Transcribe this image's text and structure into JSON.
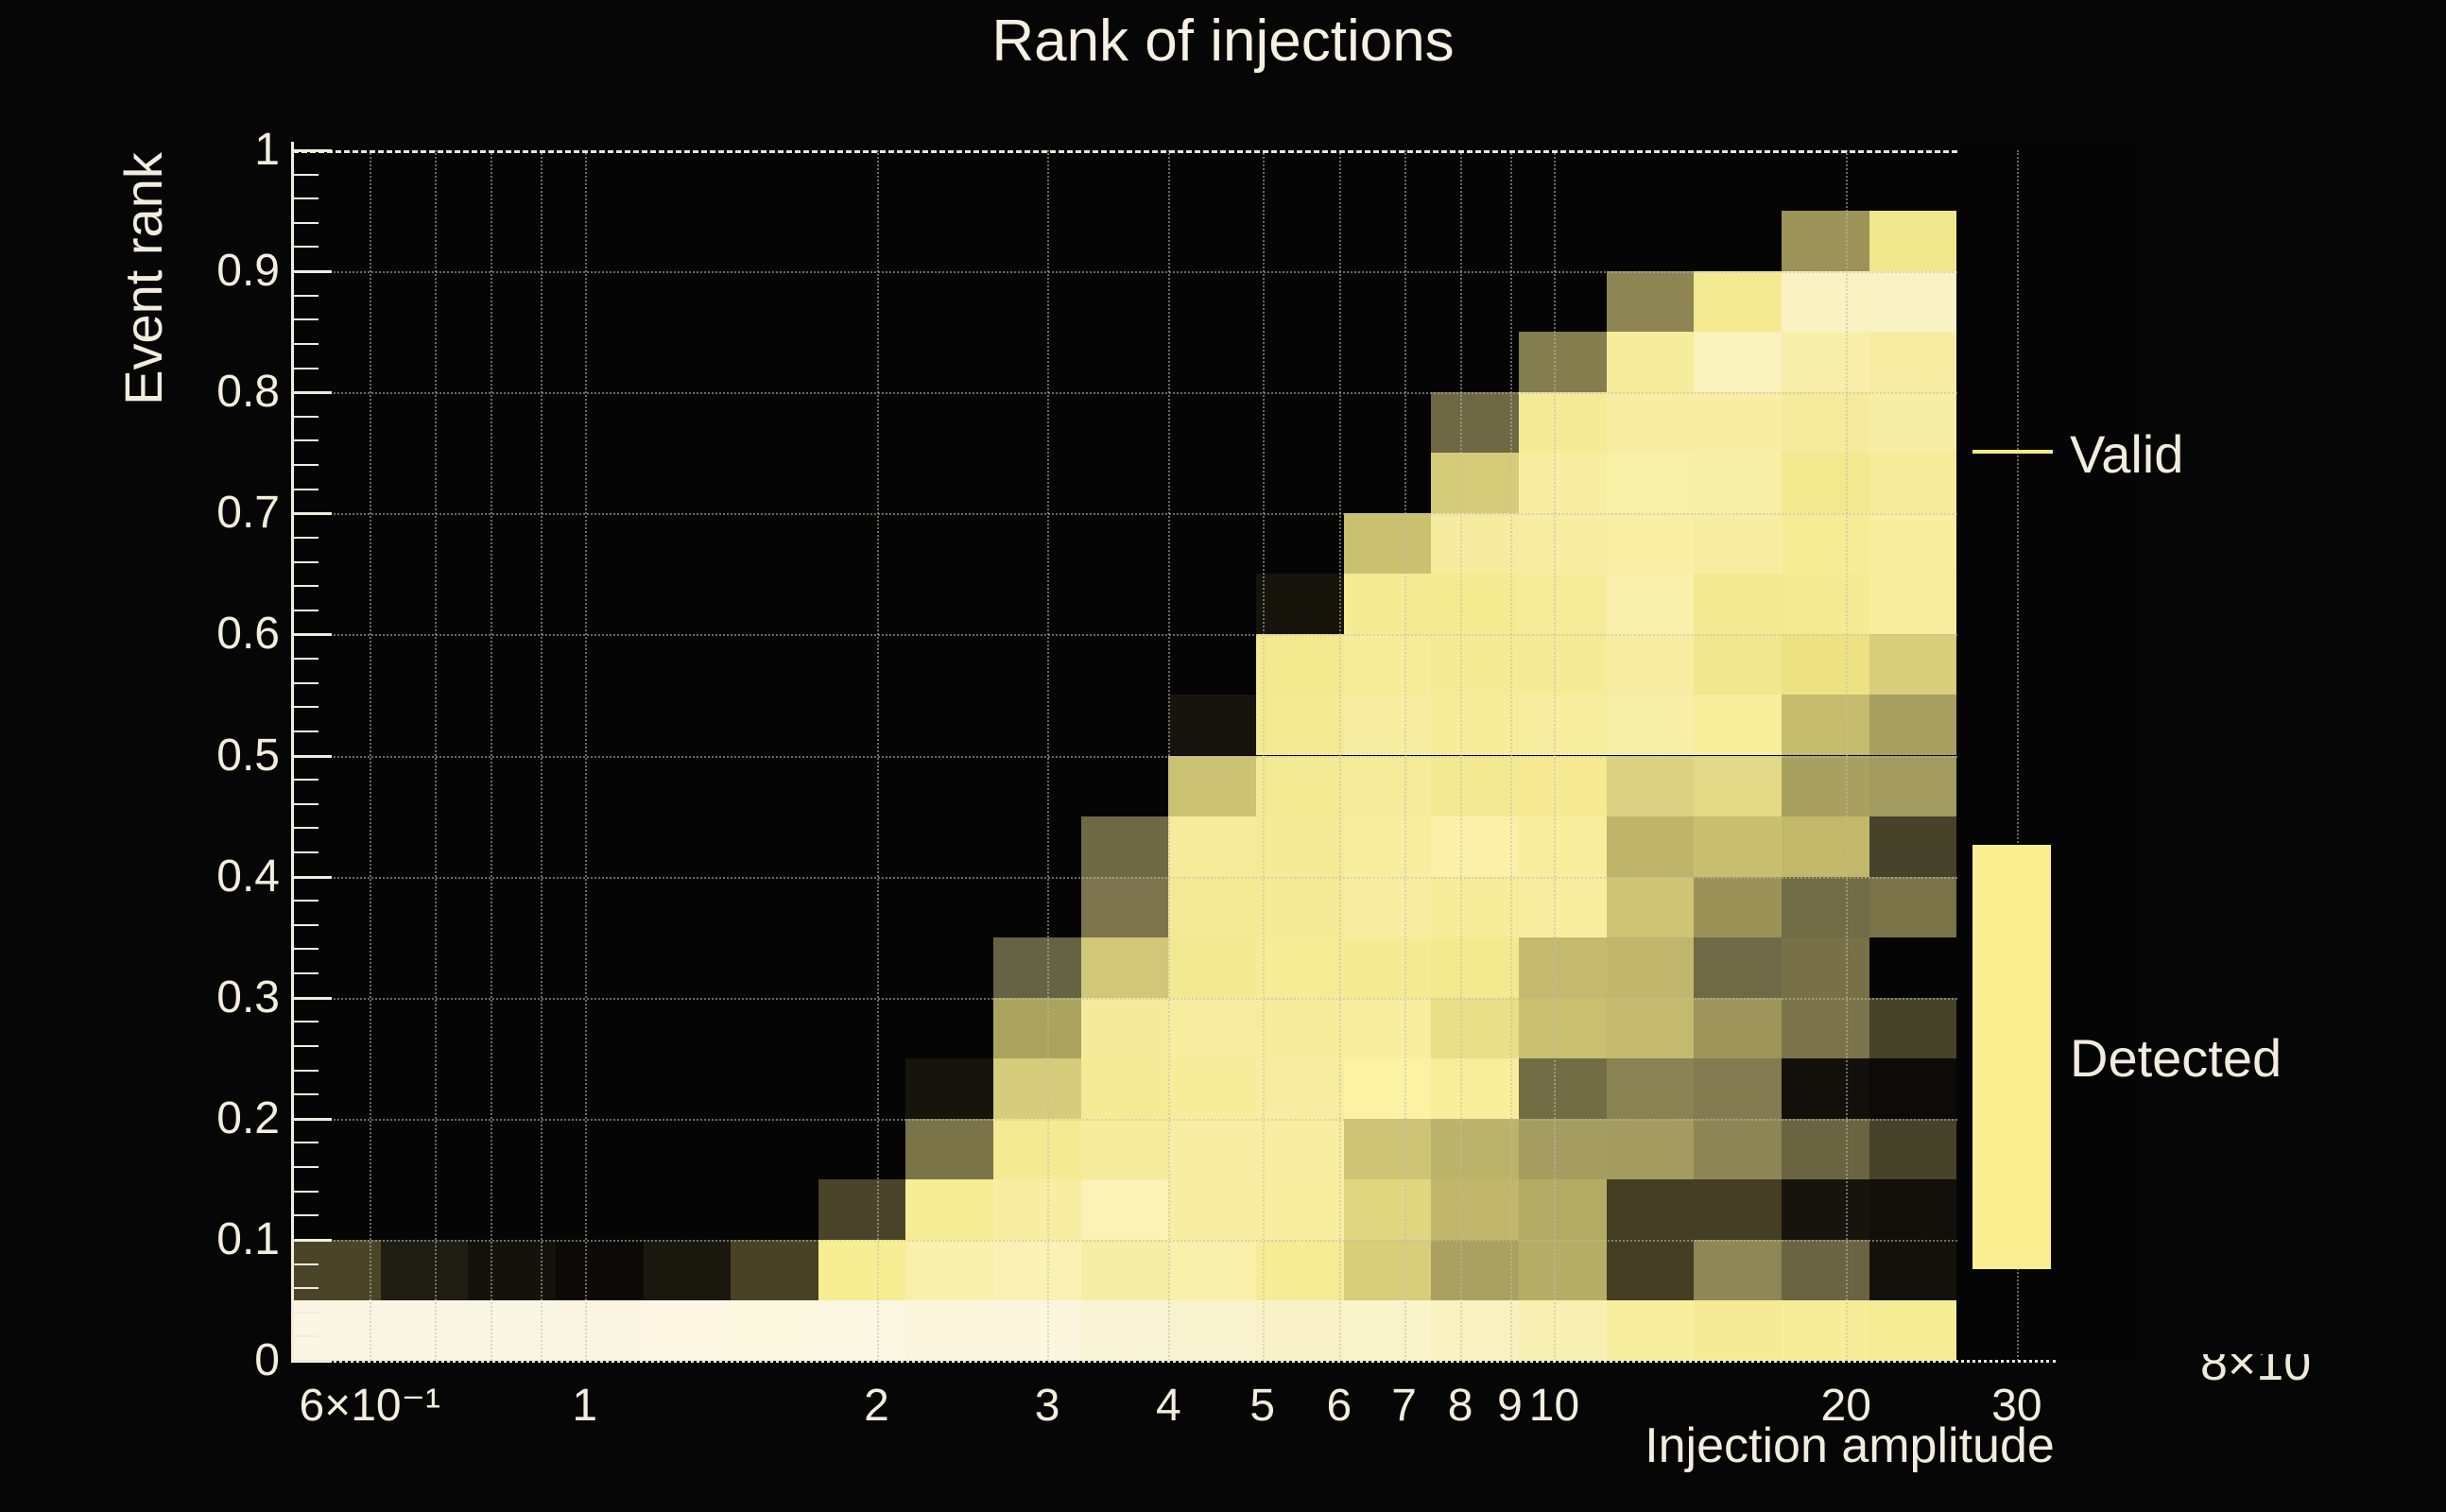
{
  "title": "Rank of injections",
  "axes": {
    "x_label": "Injection amplitude",
    "y_label": "Event rank",
    "x_tick_labels": [
      "6×10⁻¹",
      "1",
      "2",
      "3",
      "4",
      "5",
      "6",
      "7",
      "8",
      "9",
      "10",
      "20",
      "30"
    ],
    "y_tick_labels": [
      "0",
      "0.1",
      "0.2",
      "0.3",
      "0.4",
      "0.5",
      "0.6",
      "0.7",
      "0.8",
      "0.9",
      "1"
    ]
  },
  "legend": {
    "valid_label": "Valid",
    "valid_line_color": "#f3e98c",
    "detected_label": "Detected",
    "detected_swatch_color": "#faee90"
  },
  "corner_text": "8×10",
  "chart_data": {
    "type": "heatmap",
    "title": "Rank of injections",
    "xlabel": "Injection amplitude",
    "ylabel": "Event rank",
    "x_scale": "log",
    "xlim": [
      0.5,
      40
    ],
    "ylim": [
      0,
      1
    ],
    "grid": true,
    "legend_position": "right",
    "x_ticks": [
      {
        "v": 0.6,
        "label": "6×10⁻¹"
      },
      {
        "v": 1,
        "label": "1"
      },
      {
        "v": 2,
        "label": "2"
      },
      {
        "v": 3,
        "label": "3"
      },
      {
        "v": 4,
        "label": "4"
      },
      {
        "v": 5,
        "label": "5"
      },
      {
        "v": 6,
        "label": "6"
      },
      {
        "v": 7,
        "label": "7"
      },
      {
        "v": 8,
        "label": "8"
      },
      {
        "v": 9,
        "label": "9"
      },
      {
        "v": 10,
        "label": "10"
      },
      {
        "v": 20,
        "label": "20"
      },
      {
        "v": 30,
        "label": "30"
      }
    ],
    "y_ticks": [
      {
        "v": 0,
        "label": "0"
      },
      {
        "v": 0.1,
        "label": "0.1"
      },
      {
        "v": 0.2,
        "label": "0.2"
      },
      {
        "v": 0.3,
        "label": "0.3"
      },
      {
        "v": 0.4,
        "label": "0.4"
      },
      {
        "v": 0.5,
        "label": "0.5"
      },
      {
        "v": 0.6,
        "label": "0.6"
      },
      {
        "v": 0.7,
        "label": "0.7"
      },
      {
        "v": 0.8,
        "label": "0.8"
      },
      {
        "v": 0.9,
        "label": "0.9"
      },
      {
        "v": 1,
        "label": "1"
      }
    ],
    "x_gridlines": [
      0.6,
      0.7,
      0.8,
      0.9,
      1,
      2,
      3,
      4,
      5,
      6,
      7,
      8,
      9,
      10,
      20,
      30
    ],
    "y_gridlines": [
      0.1,
      0.2,
      0.3,
      0.4,
      0.5,
      0.6,
      0.7,
      0.8,
      0.9
    ],
    "x_bin_edges": [
      0.5,
      0.6156,
      0.7579,
      0.9331,
      1.1488,
      1.4143,
      1.7413,
      2.1438,
      2.6394,
      3.2496,
      4.0009,
      4.9258,
      6.0646,
      7.4667,
      9.1929,
      11.3183,
      13.935,
      17.1565,
      21.1228,
      26.006
    ],
    "y_bin_edges": [
      0,
      0.05,
      0.1,
      0.15,
      0.2,
      0.25,
      0.3,
      0.35,
      0.4,
      0.45,
      0.5,
      0.55,
      0.6,
      0.65,
      0.7,
      0.75,
      0.8,
      0.85,
      0.9,
      0.95,
      1
    ],
    "cells_note": "rows bottom-to-top (event rank 0 to 1), 19 log-spaced amplitude bins per row; null = empty/black",
    "cells": [
      [
        "#fbf5e3",
        "#fbf5e3",
        "#fbf6e4",
        "#fbf6e4",
        "#fcf6e2",
        "#fdf8e0",
        "#fcf7e2",
        "#fcf6de",
        "#fcf6de",
        "#faf4d6",
        "#f9f2ce",
        "#f9f2c8",
        "#faf4ca",
        "#f9f2c0",
        "#f8f0b2",
        "#f7ee9e",
        "#f5eb96",
        "#f7ed98",
        "#f6ec96"
      ],
      [
        "#4b4528",
        "#201d12",
        "#14120b",
        "#0b0a07",
        "#1a180e",
        "#484226",
        "#f7ed92",
        "#f9f0ac",
        "#faf1b4",
        "#f7eea6",
        "#f8efaa",
        "#f5ec96",
        "#d8ce7a",
        "#aaa160",
        "#b6ad66",
        "#433e24",
        "#8f8756",
        "#6b6442",
        "#14120a"
      ],
      [
        null,
        null,
        null,
        null,
        null,
        null,
        "#4a452a",
        "#f6ec94",
        "#f8eea2",
        "#faf2b6",
        "#f7eea2",
        "#f7eea0",
        "#e0d680",
        "#c0b76a",
        "#b3aa64",
        "#433e24",
        "#433e24",
        "#16140c",
        "#12100a"
      ],
      [
        null,
        null,
        null,
        null,
        null,
        null,
        null,
        "#7a7448",
        "#f4ea92",
        "#f5ec9c",
        "#f7eea4",
        "#f7eea2",
        "#cdc476",
        "#bcb36a",
        "#a59d60",
        "#a39b60",
        "#8d8654",
        "#6b6440",
        "#47422a"
      ],
      [
        null,
        null,
        null,
        null,
        null,
        null,
        null,
        "#16140c",
        "#d6cd7c",
        "#f5eb96",
        "#f6ec9a",
        "#f6eda0",
        "#fbf2a4",
        "#f7ee9a",
        "#736d46",
        "#8a8354",
        "#827b50",
        "#12100a",
        "#0c0b07"
      ],
      [
        null,
        null,
        null,
        null,
        null,
        null,
        null,
        null,
        "#aba45f",
        "#f4eb9a",
        "#f6eda1",
        "#f6ed9c",
        "#f7eea0",
        "#e9df86",
        "#c9c070",
        "#c3ba6e",
        "#9c9459",
        "#7b744a",
        "#47422a"
      ],
      [
        null,
        null,
        null,
        null,
        null,
        null,
        null,
        null,
        "#666244",
        "#d0c778",
        "#f2e993",
        "#f5ec96",
        "#f5eb94",
        "#f3e98e",
        "#c3ba6e",
        "#c0b76c",
        "#6f6945",
        "#787148",
        null
      ],
      [
        null,
        null,
        null,
        null,
        null,
        null,
        null,
        null,
        null,
        "#7b744c",
        "#f4ea96",
        "#f5eb96",
        "#f8eea2",
        "#f6ec9a",
        "#f7ed9e",
        "#cdc474",
        "#9a9257",
        "#726c46",
        "#7a7448"
      ],
      [
        null,
        null,
        null,
        null,
        null,
        null,
        null,
        null,
        null,
        "#6e6845",
        "#f5eb9a",
        "#f5eb96",
        "#f7ed9e",
        "#faf0a8",
        "#f7ed9c",
        "#bdb46a",
        "#c9c06f",
        "#c1b86a",
        "#47422a"
      ],
      [
        null,
        null,
        null,
        null,
        null,
        null,
        null,
        null,
        null,
        null,
        "#cbc274",
        "#f4ea94",
        "#f5eb9a",
        "#f3e992",
        "#f5ea92",
        "#dbd182",
        "#e3d986",
        "#a8a05e",
        "#a29a5e"
      ],
      [
        null,
        null,
        null,
        null,
        null,
        null,
        null,
        null,
        null,
        null,
        "#16140c",
        "#f4ea92",
        "#f7eda0",
        "#f6ec9a",
        "#f7ed9e",
        "#f8efa6",
        "#f8ee9c",
        "#c5bc6e",
        "#a8a061"
      ],
      [
        null,
        null,
        null,
        null,
        null,
        null,
        null,
        null,
        null,
        null,
        null,
        "#f3e98e",
        "#f6ec9a",
        "#f5eb94",
        "#f5eb96",
        "#f7eea4",
        "#f0e78e",
        "#ece284",
        "#d8ce7c"
      ],
      [
        null,
        null,
        null,
        null,
        null,
        null,
        null,
        null,
        null,
        null,
        null,
        "#16140b",
        "#f5eb92",
        "#f4ea90",
        "#f6ec98",
        "#f9f0ac",
        "#f3e990",
        "#f4ea92",
        "#f7ed9c"
      ],
      [
        null,
        null,
        null,
        null,
        null,
        null,
        null,
        null,
        null,
        null,
        null,
        null,
        "#cac170",
        "#f6eca0",
        "#f7eda0",
        "#f8efa4",
        "#f7eda2",
        "#f6ec96",
        "#f7eea0"
      ],
      [
        null,
        null,
        null,
        null,
        null,
        null,
        null,
        null,
        null,
        null,
        null,
        null,
        null,
        "#d5cc7a",
        "#f8eea2",
        "#f9f0a8",
        "#f8efa6",
        "#f2e88e",
        "#f5eb9a"
      ],
      [
        null,
        null,
        null,
        null,
        null,
        null,
        null,
        null,
        null,
        null,
        null,
        null,
        null,
        "#6e6845",
        "#f5eb96",
        "#f7eda0",
        "#f7eea2",
        "#f4eb9c",
        "#f7eea6"
      ],
      [
        null,
        null,
        null,
        null,
        null,
        null,
        null,
        null,
        null,
        null,
        null,
        null,
        null,
        null,
        "#847d4e",
        "#f5ec9c",
        "#f9f2bc",
        "#f7eeaa",
        "#f6eda2"
      ],
      [
        null,
        null,
        null,
        null,
        null,
        null,
        null,
        null,
        null,
        null,
        null,
        null,
        null,
        null,
        null,
        "#8d8554",
        "#f4ea92",
        "#f9f2c2",
        "#f9f2c4"
      ],
      [
        null,
        null,
        null,
        null,
        null,
        null,
        null,
        null,
        null,
        null,
        null,
        null,
        null,
        null,
        null,
        null,
        null,
        "#9c9359",
        "#f0e78c"
      ],
      [
        null,
        null,
        null,
        null,
        null,
        null,
        null,
        null,
        null,
        null,
        null,
        null,
        null,
        null,
        null,
        null,
        null,
        null,
        null
      ]
    ],
    "series": [
      {
        "name": "Valid",
        "style": "line",
        "color": "#f3e98c"
      },
      {
        "name": "Detected",
        "style": "filled",
        "color": "#faee90"
      }
    ]
  }
}
